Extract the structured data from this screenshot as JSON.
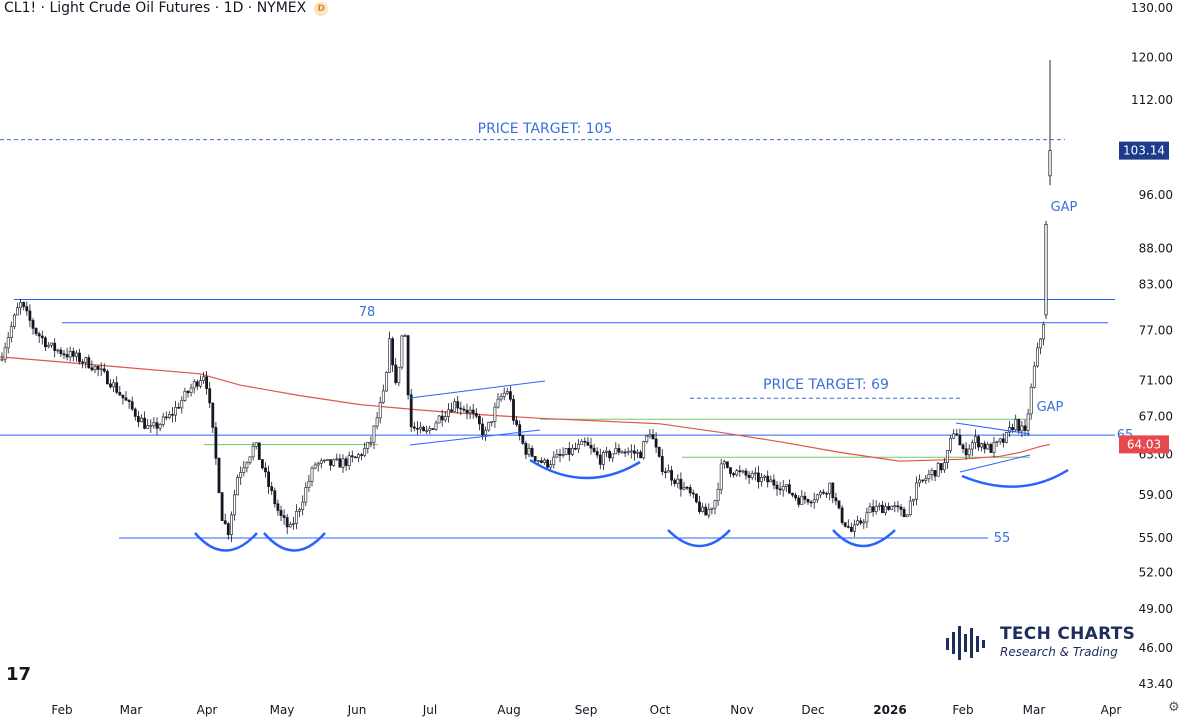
{
  "header": {
    "title": "CL1! · Light Crude Oil Futures · 1D · NYMEX",
    "badge": "D"
  },
  "brand": {
    "name": "TECH CHARTS",
    "tagline": "Research & Trading"
  },
  "tv_logo": "17",
  "settings_icon": "gear-icon",
  "colors": {
    "up": "#131722",
    "down": "#131722",
    "ma": "#e0554a",
    "level_blue": "#2962ff",
    "target_blue": "#3b6fd9",
    "green_line": "#77c36a",
    "last_price_bg": "#1e3a8a",
    "ma_badge_bg": "#e5484d"
  },
  "chart_data": {
    "type": "candlestick",
    "y_axis": {
      "scale": "log",
      "range": [
        42.0,
        130.0
      ],
      "ticks": [
        "130.00",
        "120.00",
        "112.00",
        "103.14",
        "96.00",
        "88.00",
        "83.00",
        "77.00",
        "71.00",
        "67.00",
        "64.03",
        "63.00",
        "59.00",
        "55.00",
        "52.00",
        "49.00",
        "46.00",
        "43.40"
      ]
    },
    "x_axis": {
      "labels": [
        "Feb",
        "Mar",
        "Apr",
        "May",
        "Jun",
        "Jul",
        "Aug",
        "Sep",
        "Oct",
        "Nov",
        "Dec",
        "2026",
        "Feb",
        "Mar",
        "Apr"
      ]
    },
    "last_price": "103.14",
    "ma_value": "64.03",
    "annotations": {
      "price_target_105": "PRICE TARGET: 105",
      "price_target_69": "PRICE TARGET: 69",
      "level_78": "78",
      "level_65": "65",
      "level_55": "55",
      "gap_1": "GAP",
      "gap_2": "GAP"
    },
    "levels": {
      "target_105": 105,
      "target_69": 69,
      "resistance_81": 81,
      "resistance_78": 78,
      "support_65": 65,
      "support_55": 55,
      "neckline_high": 66.7,
      "neckline_low": 62.7
    },
    "series": [
      {
        "name": "price",
        "points": [
          [
            0,
            73.5
          ],
          [
            20,
            80.5
          ],
          [
            35,
            77
          ],
          [
            50,
            75
          ],
          [
            70,
            74
          ],
          [
            90,
            73
          ],
          [
            110,
            71
          ],
          [
            130,
            68
          ],
          [
            150,
            65.5
          ],
          [
            170,
            67
          ],
          [
            190,
            70
          ],
          [
            205,
            72
          ],
          [
            212,
            66
          ],
          [
            222,
            57
          ],
          [
            228,
            55.5
          ],
          [
            238,
            61
          ],
          [
            255,
            64
          ],
          [
            268,
            60
          ],
          [
            280,
            57
          ],
          [
            290,
            55.7
          ],
          [
            300,
            58
          ],
          [
            315,
            62
          ],
          [
            335,
            62
          ],
          [
            355,
            62.5
          ],
          [
            370,
            64
          ],
          [
            385,
            70
          ],
          [
            390,
            76
          ],
          [
            396,
            70
          ],
          [
            404,
            78.5
          ],
          [
            410,
            66
          ],
          [
            425,
            65
          ],
          [
            440,
            67
          ],
          [
            455,
            68.5
          ],
          [
            470,
            67.5
          ],
          [
            485,
            65
          ],
          [
            500,
            69
          ],
          [
            508,
            70
          ],
          [
            515,
            66
          ],
          [
            525,
            63.5
          ],
          [
            545,
            62
          ],
          [
            565,
            63
          ],
          [
            585,
            64
          ],
          [
            600,
            62.5
          ],
          [
            620,
            63.5
          ],
          [
            640,
            63
          ],
          [
            650,
            65.5
          ],
          [
            660,
            62
          ],
          [
            675,
            60.5
          ],
          [
            690,
            59
          ],
          [
            705,
            57
          ],
          [
            715,
            58.5
          ],
          [
            722,
            62
          ],
          [
            740,
            61
          ],
          [
            760,
            60.5
          ],
          [
            780,
            60
          ],
          [
            800,
            58.5
          ],
          [
            820,
            59
          ],
          [
            830,
            60
          ],
          [
            840,
            57
          ],
          [
            852,
            55.5
          ],
          [
            870,
            57.5
          ],
          [
            890,
            58
          ],
          [
            905,
            57
          ],
          [
            915,
            59.5
          ],
          [
            930,
            61
          ],
          [
            945,
            62
          ],
          [
            955,
            66
          ],
          [
            962,
            63
          ],
          [
            975,
            64.5
          ],
          [
            990,
            63.5
          ],
          [
            1005,
            64.5
          ],
          [
            1015,
            66.5
          ],
          [
            1025,
            65
          ],
          [
            1030,
            69
          ],
          [
            1035,
            73
          ],
          [
            1042,
            77
          ],
          [
            1046,
            80
          ],
          [
            1049,
            91.5
          ],
          [
            1051,
            103.14
          ]
        ]
      },
      {
        "name": "moving average",
        "points": [
          [
            0,
            73.8
          ],
          [
            60,
            73.2
          ],
          [
            120,
            72.6
          ],
          [
            200,
            71.8
          ],
          [
            240,
            70.5
          ],
          [
            300,
            69.3
          ],
          [
            360,
            68.3
          ],
          [
            420,
            67.7
          ],
          [
            480,
            67.2
          ],
          [
            540,
            66.8
          ],
          [
            600,
            66.5
          ],
          [
            660,
            66.2
          ],
          [
            720,
            65.3
          ],
          [
            780,
            64.3
          ],
          [
            840,
            63.2
          ],
          [
            900,
            62.3
          ],
          [
            960,
            62.5
          ],
          [
            1000,
            62.8
          ],
          [
            1020,
            63.2
          ],
          [
            1040,
            63.8
          ],
          [
            1050,
            64.03
          ]
        ]
      }
    ]
  }
}
